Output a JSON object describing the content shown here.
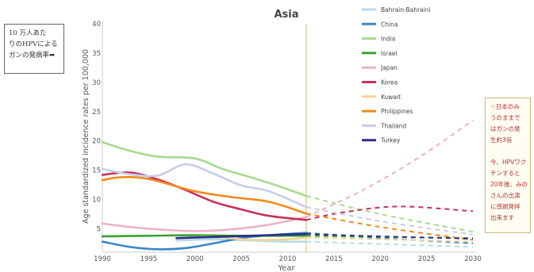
{
  "notes": {
    "left": [
      "10 万人あた",
      "りのHPVによる",
      "ガンの発病率➡"
    ],
    "right_a": [
      "☜日本のみ",
      "うのままで",
      "はガンの発",
      "生約3倍"
    ],
    "right_b": [
      "今、HPVワク",
      "チンすると",
      "20年後、みの",
      "さんの出演",
      "に感謝発祥",
      "出来ます"
    ]
  },
  "colors": {
    "Bahrain-Bahraini": "#b3dce8",
    "China": "#3a86c8",
    "India": "#a9d98f",
    "Israel": "#3aa033",
    "Japan": "#eeb3c3",
    "Korea": "#c73257",
    "Kuwait": "#f5d393",
    "Philippines": "#f08a1c",
    "Thailand": "#c6cdeb",
    "Turkey": "#2c2e88",
    "marker_line": "#e6d497"
  },
  "chart_data": {
    "type": "line",
    "title": "Asia",
    "xlabel": "Year",
    "ylabel": "Age standardized incidence rates per 100,000",
    "xlim": [
      1990,
      2030
    ],
    "ylim": [
      1,
      40
    ],
    "xticks": [
      "1990",
      "1995",
      "2000",
      "2005",
      "2010",
      "2015",
      "2020",
      "2025",
      "2030"
    ],
    "yticks": [
      "5",
      "10",
      "15",
      "20",
      "25",
      "30",
      "35",
      "40"
    ],
    "projection_start": 2012,
    "legend_position": "top-right",
    "series": [
      {
        "name": "Bahrain-Bahraini",
        "x": [
          1998,
          2002,
          2006,
          2010,
          2012
        ],
        "y": [
          3.0,
          3.2,
          3.0,
          2.8,
          2.8
        ],
        "proj_x": [
          2012,
          2020,
          2030
        ],
        "proj_y": [
          2.8,
          2.4,
          1.9
        ]
      },
      {
        "name": "China",
        "x": [
          1990,
          1993,
          1996,
          1999,
          2002,
          2005,
          2008,
          2012
        ],
        "y": [
          2.8,
          1.9,
          1.5,
          1.7,
          2.5,
          3.4,
          3.9,
          4.3
        ],
        "proj_x": [
          2012,
          2020,
          2030
        ],
        "proj_y": [
          4.3,
          3.4,
          2.5
        ]
      },
      {
        "name": "India",
        "x": [
          1990,
          1993,
          1996,
          2000,
          2003,
          2006,
          2009,
          2012
        ],
        "y": [
          19.8,
          18.3,
          17.3,
          17.0,
          15.2,
          13.8,
          12.3,
          10.6
        ],
        "proj_x": [
          2012,
          2020,
          2030
        ],
        "proj_y": [
          10.6,
          7.5,
          4.5
        ]
      },
      {
        "name": "Israel",
        "x": [
          1990,
          1995,
          2000,
          2005,
          2010,
          2012
        ],
        "y": [
          3.7,
          3.8,
          3.9,
          3.8,
          3.8,
          3.8
        ],
        "proj_x": [
          2012,
          2020,
          2030
        ],
        "proj_y": [
          3.8,
          3.6,
          3.4
        ]
      },
      {
        "name": "Japan",
        "x": [
          1990,
          1993,
          1996,
          2000,
          2004,
          2008,
          2012
        ],
        "y": [
          5.9,
          5.3,
          4.9,
          4.6,
          4.9,
          5.7,
          7.0
        ],
        "proj_x": [
          2012,
          2018,
          2024,
          2030
        ],
        "proj_y": [
          7.0,
          11.5,
          17.0,
          23.5
        ]
      },
      {
        "name": "Korea",
        "x": [
          1990,
          1993,
          1996,
          1999,
          2002,
          2005,
          2008,
          2012
        ],
        "y": [
          14.2,
          14.6,
          13.4,
          11.6,
          9.6,
          8.3,
          7.2,
          6.5
        ],
        "proj_x": [
          2012,
          2016,
          2022,
          2030
        ],
        "proj_y": [
          6.5,
          7.8,
          8.8,
          8.0
        ]
      },
      {
        "name": "Kuwait",
        "x": [
          1998,
          2002,
          2006,
          2010,
          2012
        ],
        "y": [
          3.4,
          3.6,
          3.1,
          3.2,
          3.5
        ],
        "proj_x": [
          2012,
          2020,
          2030
        ],
        "proj_y": [
          3.5,
          3.2,
          2.8
        ]
      },
      {
        "name": "Philippines",
        "x": [
          1990,
          1992,
          1995,
          2000,
          2004,
          2008,
          2012
        ],
        "y": [
          13.3,
          13.8,
          13.5,
          11.4,
          10.4,
          9.6,
          7.6
        ],
        "proj_x": [
          2012,
          2020,
          2030
        ],
        "proj_y": [
          7.6,
          5.3,
          3.1
        ]
      },
      {
        "name": "Thailand",
        "x": [
          1990,
          1993,
          1996,
          1999,
          2002,
          2005,
          2008,
          2012
        ],
        "y": [
          15.2,
          14.3,
          14.1,
          16.0,
          14.4,
          12.4,
          11.4,
          8.7
        ],
        "proj_x": [
          2012,
          2020,
          2030
        ],
        "proj_y": [
          8.7,
          6.3,
          4.0
        ]
      },
      {
        "name": "Turkey",
        "x": [
          1998,
          2002,
          2006,
          2010,
          2012
        ],
        "y": [
          3.4,
          3.6,
          3.8,
          4.0,
          4.1
        ],
        "proj_x": [
          2012,
          2020,
          2030
        ],
        "proj_y": [
          4.1,
          3.7,
          3.3
        ]
      }
    ]
  }
}
